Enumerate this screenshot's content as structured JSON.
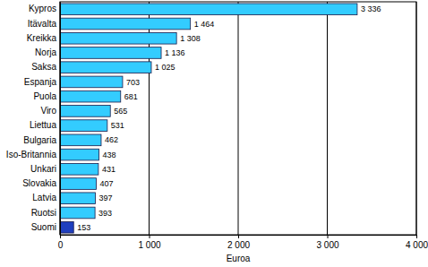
{
  "chart_data": {
    "type": "bar",
    "orientation": "horizontal",
    "categories": [
      "Kypros",
      "Itävalta",
      "Kreikka",
      "Norja",
      "Saksa",
      "Espanja",
      "Puola",
      "Viro",
      "Liettua",
      "Bulgaria",
      "Iso-Britannia",
      "Unkari",
      "Slovakia",
      "Latvia",
      "Ruotsi",
      "Suomi"
    ],
    "values": [
      3336,
      1464,
      1308,
      1136,
      1025,
      703,
      681,
      565,
      531,
      462,
      438,
      431,
      407,
      397,
      393,
      153
    ],
    "value_labels": [
      "3 336",
      "1 464",
      "1 308",
      "1 136",
      "1 025",
      "703",
      "681",
      "565",
      "531",
      "462",
      "438",
      "431",
      "407",
      "397",
      "393",
      "153"
    ],
    "colors": [
      "#33ccff",
      "#33ccff",
      "#33ccff",
      "#33ccff",
      "#33ccff",
      "#33ccff",
      "#33ccff",
      "#33ccff",
      "#33ccff",
      "#33ccff",
      "#33ccff",
      "#33ccff",
      "#33ccff",
      "#33ccff",
      "#33ccff",
      "#1f3fbf"
    ],
    "xlabel": "Euroa",
    "xlim": [
      0,
      4000
    ],
    "xticks": [
      0,
      {
        "value": 1000,
        "label": "1 000"
      },
      {
        "value": 2000,
        "label": "2 000"
      },
      {
        "value": 3000,
        "label": "3 000"
      },
      {
        "value": 4000,
        "label": "4 000"
      }
    ],
    "grid": true,
    "data_labels": true
  }
}
